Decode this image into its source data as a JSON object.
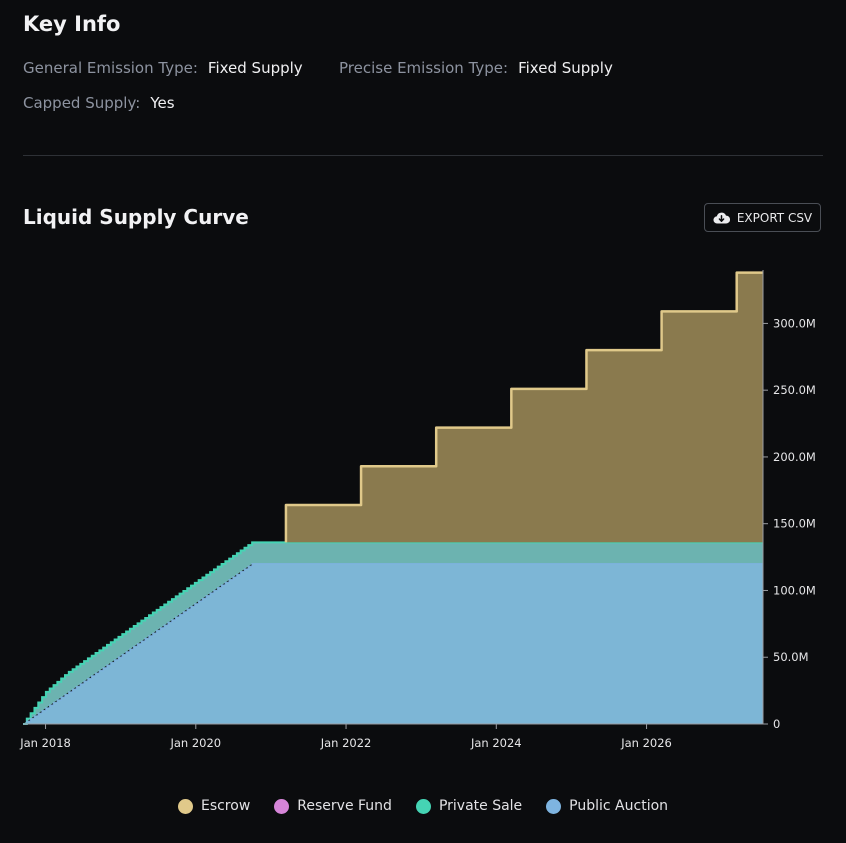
{
  "key_info": {
    "title": "Key Info",
    "general_emission_label": "General Emission Type:",
    "general_emission_value": "Fixed Supply",
    "precise_emission_label": "Precise Emission Type:",
    "precise_emission_value": "Fixed Supply",
    "capped_label": "Capped Supply:",
    "capped_value": "Yes"
  },
  "section": {
    "title": "Liquid Supply Curve",
    "export_label": "EXPORT CSV",
    "export_icon": "cloud-download-icon"
  },
  "colors": {
    "escrow": "#e0c98a",
    "reserve_fund": "#d685d8",
    "private_sale": "#45d4b4",
    "public_auction": "#7eb4e0",
    "escrow_fill": "#8a7a4e",
    "private_fill": "#6cb3b0",
    "public_fill": "#7db6d6"
  },
  "chart_data": {
    "type": "area",
    "stacked": true,
    "x_ticks": [
      "Jan 2018",
      "Jan 2020",
      "Jan 2022",
      "Jan 2024",
      "Jan 2026"
    ],
    "y_ticks": [
      "0",
      "50.0M",
      "100.0M",
      "150.0M",
      "200.0M",
      "250.0M",
      "300.0M"
    ],
    "x_range": [
      2017.7,
      2027.55
    ],
    "y_range": [
      0,
      340000000
    ],
    "y_axis_side": "right",
    "grid": false,
    "legend_position": "bottom",
    "series": [
      {
        "name": "Public Auction",
        "key": "public_auction",
        "points": [
          [
            2017.7,
            0
          ],
          [
            2020.75,
            120000000
          ],
          [
            2027.55,
            120000000
          ]
        ]
      },
      {
        "name": "Private Sale",
        "key": "private_sale",
        "points": [
          [
            2017.7,
            0
          ],
          [
            2018.0,
            12000000
          ],
          [
            2018.3,
            15000000
          ],
          [
            2020.75,
            16000000
          ],
          [
            2027.55,
            16000000
          ]
        ]
      },
      {
        "name": "Reserve Fund",
        "key": "reserve_fund",
        "points": []
      },
      {
        "name": "Escrow",
        "key": "escrow",
        "steps": [
          [
            2021.2,
            28000000
          ],
          [
            2022.2,
            57000000
          ],
          [
            2023.2,
            86000000
          ],
          [
            2024.2,
            115000000
          ],
          [
            2025.2,
            144000000
          ],
          [
            2026.2,
            173000000
          ],
          [
            2027.2,
            202000000
          ]
        ],
        "end_x": 2027.55
      }
    ],
    "legend": [
      {
        "label": "Escrow",
        "key": "escrow"
      },
      {
        "label": "Reserve Fund",
        "key": "reserve_fund"
      },
      {
        "label": "Private Sale",
        "key": "private_sale"
      },
      {
        "label": "Public Auction",
        "key": "public_auction"
      }
    ]
  }
}
